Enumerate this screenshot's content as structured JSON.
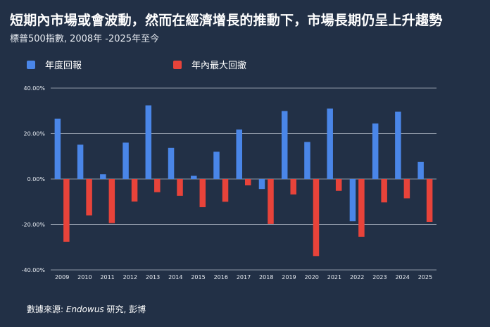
{
  "header": {
    "title": "短期內市場或會波動，然而在經濟增長的推動下，市場長期仍呈上升趨勢",
    "subtitle": "標普500指數, 2008年 -2025年至今"
  },
  "footer": {
    "source_prefix": "數據來源: ",
    "source_brand": "Endowus",
    "source_suffix": " 研究, 彭博"
  },
  "colors": {
    "background": "#223046",
    "annual_return": "#4a86e8",
    "max_drawdown": "#e8433a",
    "grid": "#8d97a6"
  },
  "chart_data": {
    "type": "bar",
    "title": "短期內市場或會波動，然而在經濟增長的推動下，市場長期仍呈上升趨勢",
    "subtitle": "標普500指數, 2008年 -2025年至今",
    "xlabel": "",
    "ylabel": "",
    "categories": [
      "2009",
      "2010",
      "2011",
      "2012",
      "2013",
      "2014",
      "2015",
      "2016",
      "2017",
      "2018",
      "2019",
      "2020",
      "2021",
      "2022",
      "2023",
      "2024",
      "2025"
    ],
    "series": [
      {
        "name": "年度回報",
        "values": [
          26.5,
          15.1,
          2.1,
          16.0,
          32.4,
          13.7,
          1.4,
          12.0,
          21.8,
          -4.4,
          29.9,
          16.3,
          31.0,
          -18.6,
          24.4,
          29.6,
          7.5
        ]
      },
      {
        "name": "年內最大回撤",
        "values": [
          -27.6,
          -16.0,
          -19.4,
          -9.9,
          -5.8,
          -7.4,
          -12.4,
          -10.0,
          -2.8,
          -19.8,
          -6.8,
          -33.9,
          -5.2,
          -25.4,
          -10.3,
          -8.5,
          -18.9
        ]
      }
    ],
    "ylim": [
      -40,
      40
    ],
    "yticks": [
      40,
      20,
      0,
      -20,
      -40
    ],
    "ytick_labels": [
      "40.00%",
      "20.00%",
      "0.00%",
      "-20.00%",
      "-40.00%"
    ],
    "grid": true,
    "legend_position": "top-left"
  }
}
